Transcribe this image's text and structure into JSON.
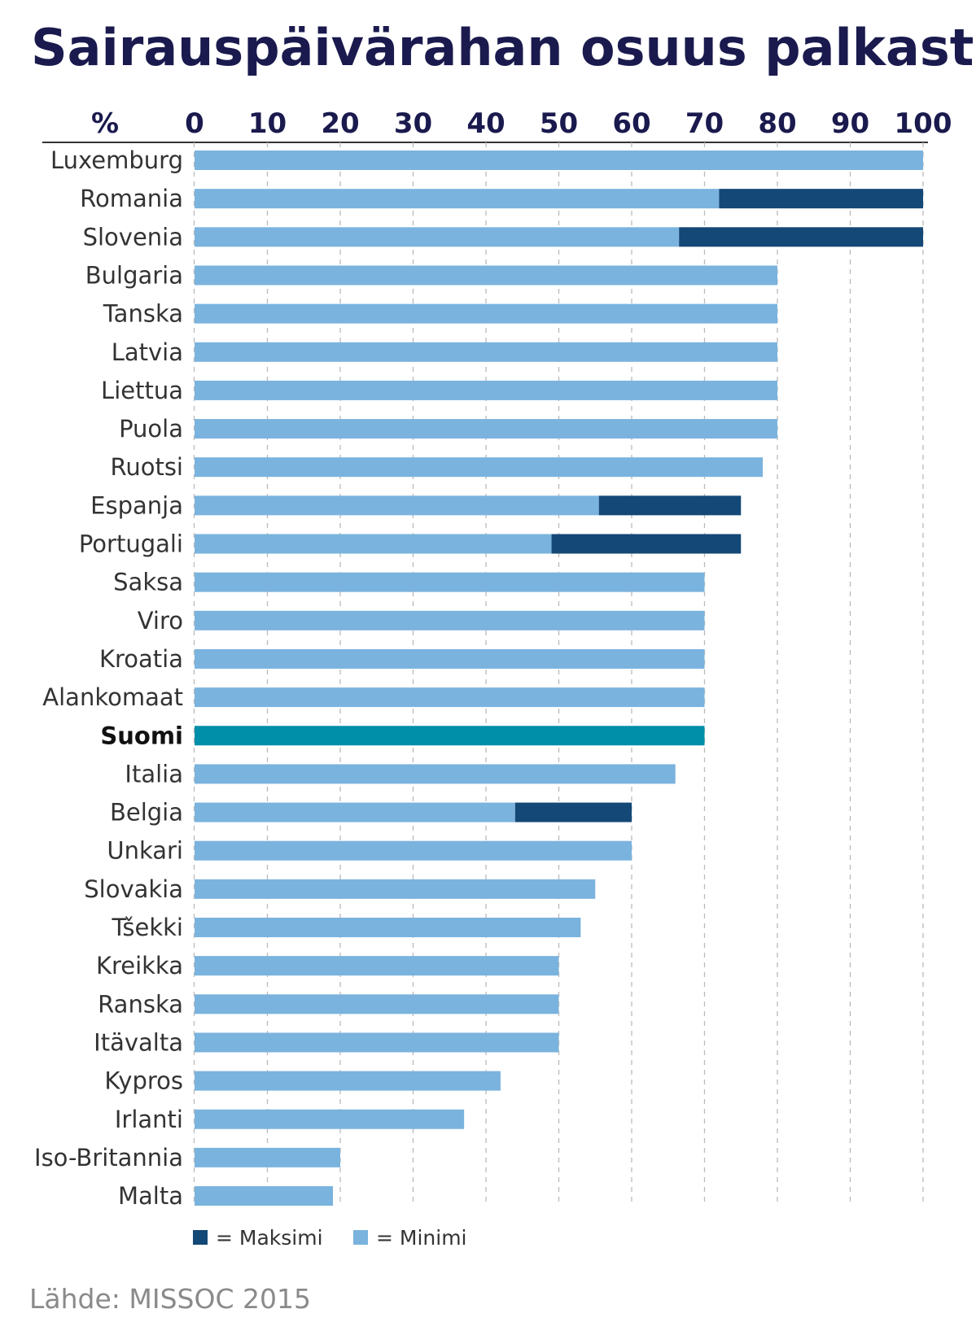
{
  "chart_data": {
    "type": "bar",
    "orientation": "horizontal",
    "stacked": true,
    "title": "Sairauspäivärahan osuus palkasta",
    "unit_label": "%",
    "xlim": [
      0,
      100
    ],
    "xticks": [
      0,
      10,
      20,
      30,
      40,
      50,
      60,
      70,
      80,
      90,
      100
    ],
    "grid": true,
    "categories": [
      "Luxemburg",
      "Romania",
      "Slovenia",
      "Bulgaria",
      "Tanska",
      "Latvia",
      "Liettua",
      "Puola",
      "Ruotsi",
      "Espanja",
      "Portugali",
      "Saksa",
      "Viro",
      "Kroatia",
      "Alankomaat",
      "Suomi",
      "Italia",
      "Belgia",
      "Unkari",
      "Slovakia",
      "Tšekki",
      "Kreikka",
      "Ranska",
      "Itävalta",
      "Kypros",
      "Irlanti",
      "Iso-Britannia",
      "Malta"
    ],
    "highlight": "Suomi",
    "series": [
      {
        "name": "Minimi",
        "color": "#7ab3de",
        "values": [
          100,
          72,
          66.5,
          80,
          80,
          80,
          80,
          80,
          78,
          55.5,
          49,
          70,
          70,
          70,
          70,
          70,
          66,
          44,
          60,
          55,
          53,
          50,
          50,
          50,
          42,
          37,
          20,
          19
        ]
      },
      {
        "name": "Maksimi",
        "color": "#144876",
        "values": [
          0,
          28,
          33.5,
          0,
          0,
          0,
          0,
          0,
          0,
          19.5,
          26,
          0,
          0,
          0,
          0,
          0,
          0,
          16,
          0,
          0,
          0,
          0,
          0,
          0,
          0,
          0,
          0,
          0
        ]
      }
    ],
    "highlight_color": "#008fa8",
    "legend": [
      {
        "symbol": "■",
        "label": "= Maksimi",
        "color": "#144876"
      },
      {
        "symbol": "■",
        "label": "= Minimi",
        "color": "#7ab3de"
      }
    ],
    "legend_position": "bottom-left"
  },
  "source": "Lähde: MISSOC 2015"
}
